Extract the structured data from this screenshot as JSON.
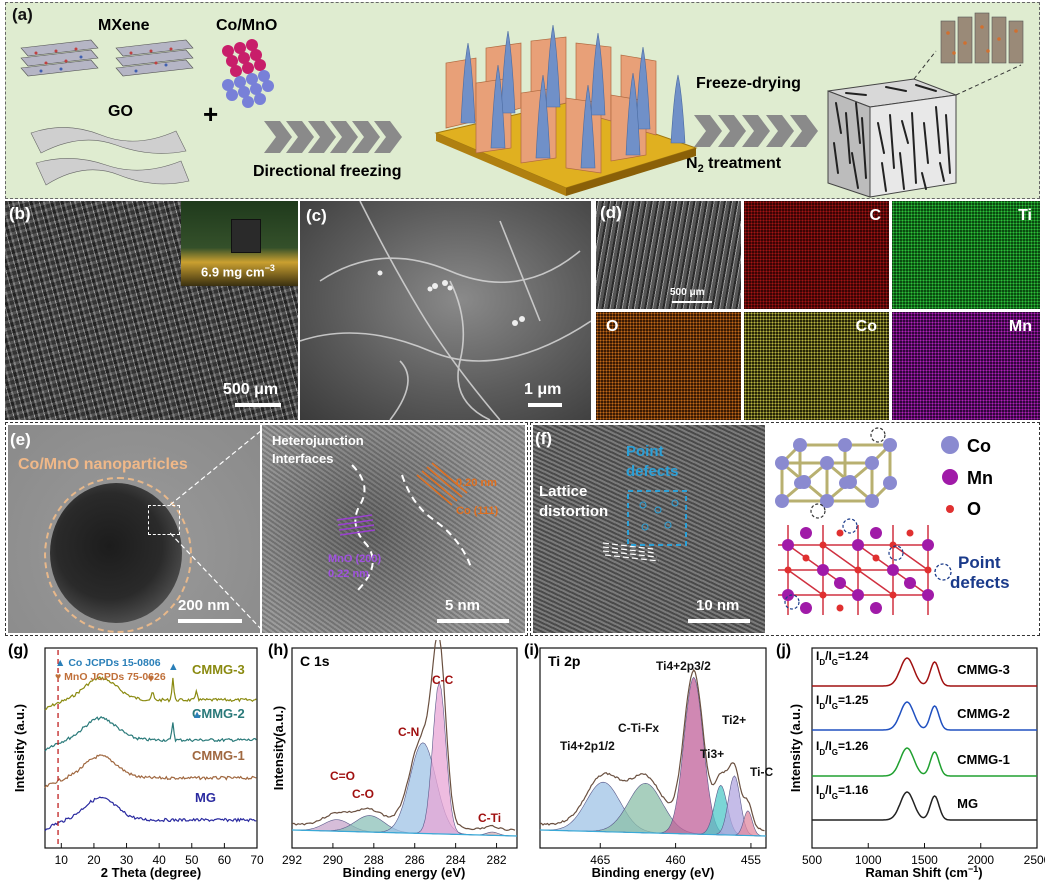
{
  "panel_a": {
    "label": "(a)",
    "mxene": "MXene",
    "comno": "Co/MnO",
    "go": "GO",
    "plus": "+",
    "directional": "Directional freezing",
    "freeze": "Freeze-drying",
    "n2": "N",
    "n2sub": "2",
    "treatment": " treatment",
    "bg_color": "#dfecd0"
  },
  "panel_b": {
    "label": "(b)",
    "inset": "6.9 mg cm",
    "inset_sup": "−3",
    "scale": "500 μm"
  },
  "panel_c": {
    "label": "(c)",
    "scale": "1 μm"
  },
  "panel_d": {
    "label": "(d)",
    "scale": "500 μm",
    "maps": [
      {
        "name": "C",
        "color": "#c01818"
      },
      {
        "name": "Ti",
        "color": "#1f9a2c"
      },
      {
        "name": "O",
        "color": "#b86018"
      },
      {
        "name": "Co",
        "color": "#a6a23a"
      },
      {
        "name": "Mn",
        "color": "#a01aa8"
      }
    ]
  },
  "panel_e": {
    "label": "(e)",
    "title": "Co/MnO nanoparticles",
    "scale1": "200 nm",
    "hetero1": "Heterojunction",
    "hetero2": "Interfaces",
    "d1": "0.20 nm",
    "d1hkl": "Co (111)",
    "d2a": "MnO (200)",
    "d2b": "0.22 nm",
    "scale2": "5 nm"
  },
  "panel_f": {
    "label": "(f)",
    "point1": "Point",
    "point2": "defects",
    "lattice1": "Lattice",
    "lattice2": "distortion",
    "scale": "10 nm",
    "legend": [
      "Co",
      "Mn",
      "O"
    ],
    "pd1": "Point",
    "pd2": "defects"
  },
  "chart_data": [
    {
      "id": "g",
      "type": "line",
      "label": "(g)",
      "xlabel": "2 Theta (degree)",
      "ylabel": "Intensity (a.u.)",
      "xlim": [
        5,
        70
      ],
      "xticks": [
        10,
        20,
        30,
        40,
        50,
        60,
        70
      ],
      "legend": [
        {
          "marker": "▲",
          "text": "Co JCPDs 15-0806",
          "color": "#2a7fb8"
        },
        {
          "marker": "♥",
          "text": "MnO JCPDs 75-0626",
          "color": "#c0703a"
        }
      ],
      "series": [
        {
          "name": "CMMG-3",
          "color": "#8a8a10",
          "peaks": [
            [
              26,
              0.5
            ],
            [
              38,
              0.6
            ],
            [
              44.2,
              1.6
            ],
            [
              51.5,
              0.7
            ]
          ]
        },
        {
          "name": "CMMG-2",
          "color": "#2a7a7a",
          "peaks": [
            [
              26,
              0.5
            ],
            [
              44.2,
              1.3
            ]
          ]
        },
        {
          "name": "CMMG-1",
          "color": "#a06840",
          "peaks": [
            [
              26,
              0.5
            ]
          ]
        },
        {
          "name": "MG",
          "color": "#2a2aa0",
          "peaks": [
            [
              26,
              0.5
            ]
          ]
        }
      ],
      "dashed_x": 9
    },
    {
      "id": "h",
      "type": "area",
      "label": "(h)",
      "title": "C 1s",
      "xlabel": "Binding energy (eV)",
      "ylabel": "Intensity(a.u.)",
      "xlim": [
        292,
        281
      ],
      "xticks": [
        292,
        290,
        288,
        286,
        284,
        282
      ],
      "components": [
        {
          "name": "C=O",
          "center": 289.8,
          "height": 0.07,
          "width": 0.9,
          "color": "#c8a7cc"
        },
        {
          "name": "C-O",
          "center": 288.2,
          "height": 0.1,
          "width": 1.0,
          "color": "#8bc0b8"
        },
        {
          "name": "C-N",
          "center": 285.6,
          "height": 0.55,
          "width": 0.9,
          "color": "#9fc3e6"
        },
        {
          "name": "C-C",
          "center": 284.8,
          "height": 0.92,
          "width": 0.45,
          "color": "#e8a6d6"
        },
        {
          "name": "C-Ti",
          "center": 282.2,
          "height": 0.02,
          "width": 0.4,
          "color": "#d9b0b0"
        }
      ]
    },
    {
      "id": "i",
      "type": "area",
      "label": "(i)",
      "title": "Ti 2p",
      "xlabel": "Binding energy (eV)",
      "xlim": [
        469,
        454
      ],
      "xticks": [
        465,
        460,
        455
      ],
      "components": [
        {
          "name": "Ti4+2p1/2",
          "center": 464.8,
          "height": 0.3,
          "width": 1.6,
          "color": "#9fc3e6"
        },
        {
          "name": "C-Ti-Fx",
          "center": 462,
          "height": 0.3,
          "width": 1.6,
          "color": "#8bbfa8"
        },
        {
          "name": "Ti4+2p3/2",
          "center": 458.8,
          "height": 0.95,
          "width": 0.9,
          "color": "#c0609a"
        },
        {
          "name": "Ti3+",
          "center": 457,
          "height": 0.3,
          "width": 0.6,
          "color": "#4fc8c8"
        },
        {
          "name": "Ti2+",
          "center": 456.1,
          "height": 0.36,
          "width": 0.55,
          "color": "#b2a6e0"
        },
        {
          "name": "Ti-C",
          "center": 455.2,
          "height": 0.15,
          "width": 0.4,
          "color": "#e08aa0"
        }
      ]
    },
    {
      "id": "j",
      "type": "line",
      "label": "(j)",
      "xlabel": "Raman Shift (cm",
      "xlabel_sup": "−1",
      "xlabel_end": ")",
      "ylabel": "Intensity (a.u.)",
      "xlim": [
        500,
        2500
      ],
      "xticks": [
        500,
        1000,
        1500,
        2000,
        2500
      ],
      "series": [
        {
          "name": "CMMG-3",
          "ratio": "=1.24",
          "color": "#a01010"
        },
        {
          "name": "CMMG-2",
          "ratio": "=1.25",
          "color": "#2050c0"
        },
        {
          "name": "CMMG-1",
          "ratio": "=1.26",
          "color": "#20a030"
        },
        {
          "name": "MG",
          "ratio": "=1.16",
          "color": "#222222"
        }
      ]
    }
  ]
}
